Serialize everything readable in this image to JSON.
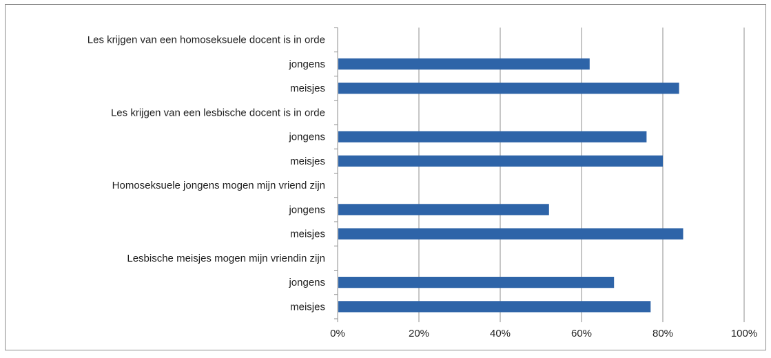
{
  "chart_data": {
    "type": "bar",
    "orientation": "horizontal",
    "categories": [
      "Les krijgen van een homoseksuele docent is in orde",
      "jongens",
      "meisjes",
      "Les krijgen van een lesbische docent is in orde",
      "jongens",
      "meisjes",
      "Homoseksuele jongens mogen mijn vriend zijn",
      "jongens",
      "meisjes",
      "Lesbische meisjes mogen mijn vriendin zijn",
      "jongens",
      "meisjes"
    ],
    "values": [
      null,
      62,
      84,
      null,
      76,
      80,
      null,
      52,
      85,
      null,
      68,
      77
    ],
    "x_ticks": [
      "0%",
      "20%",
      "40%",
      "60%",
      "80%",
      "100%"
    ],
    "xlim": [
      0,
      100
    ],
    "title": "",
    "xlabel": "",
    "ylabel": "",
    "grid": true,
    "legend": "none",
    "bar_color": "#2e64a8"
  }
}
